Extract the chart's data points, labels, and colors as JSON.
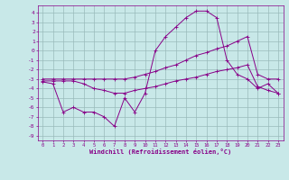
{
  "xlabel": "Windchill (Refroidissement éolien,°C)",
  "xlim": [
    -0.5,
    23.5
  ],
  "ylim": [
    -9.5,
    4.8
  ],
  "xticks": [
    0,
    1,
    2,
    3,
    4,
    5,
    6,
    7,
    8,
    9,
    10,
    11,
    12,
    13,
    14,
    15,
    16,
    17,
    18,
    19,
    20,
    21,
    22,
    23
  ],
  "yticks": [
    -9,
    -8,
    -7,
    -6,
    -5,
    -4,
    -3,
    -2,
    -1,
    0,
    1,
    2,
    3,
    4
  ],
  "bg_color": "#c8e8e8",
  "line_color": "#880088",
  "grid_color": "#99bbbb",
  "series1_x": [
    0,
    1,
    2,
    3,
    4,
    5,
    6,
    7,
    8,
    9,
    10,
    11,
    12,
    13,
    14,
    15,
    16,
    17,
    18,
    19,
    20,
    21,
    22,
    23
  ],
  "series1_y": [
    -3.0,
    -3.0,
    -3.0,
    -3.0,
    -3.0,
    -3.0,
    -3.0,
    -3.0,
    -3.0,
    -2.8,
    -2.5,
    -2.2,
    -1.8,
    -1.5,
    -1.0,
    -0.5,
    -0.2,
    0.2,
    0.5,
    1.0,
    1.5,
    -2.5,
    -3.0,
    -3.0
  ],
  "series2_x": [
    0,
    1,
    2,
    3,
    4,
    5,
    6,
    7,
    8,
    9,
    10,
    11,
    12,
    13,
    14,
    15,
    16,
    17,
    18,
    19,
    20,
    21,
    22,
    23
  ],
  "series2_y": [
    -3.2,
    -3.2,
    -3.2,
    -3.2,
    -3.5,
    -4.0,
    -4.2,
    -4.5,
    -4.5,
    -4.2,
    -4.0,
    -3.8,
    -3.5,
    -3.2,
    -3.0,
    -2.8,
    -2.5,
    -2.2,
    -2.0,
    -1.8,
    -1.5,
    -3.8,
    -4.2,
    -4.5
  ],
  "series3_x": [
    0,
    1,
    2,
    3,
    4,
    5,
    6,
    7,
    8,
    9,
    10,
    11,
    12,
    13,
    14,
    15,
    16,
    17,
    18,
    19,
    20,
    21,
    22,
    23
  ],
  "series3_y": [
    -3.3,
    -3.5,
    -6.5,
    -6.0,
    -6.5,
    -6.5,
    -7.0,
    -8.0,
    -5.0,
    -6.5,
    -4.5,
    0.0,
    1.5,
    2.5,
    3.5,
    4.2,
    4.2,
    3.5,
    -1.0,
    -2.5,
    -3.0,
    -4.0,
    -3.5,
    -4.5
  ]
}
